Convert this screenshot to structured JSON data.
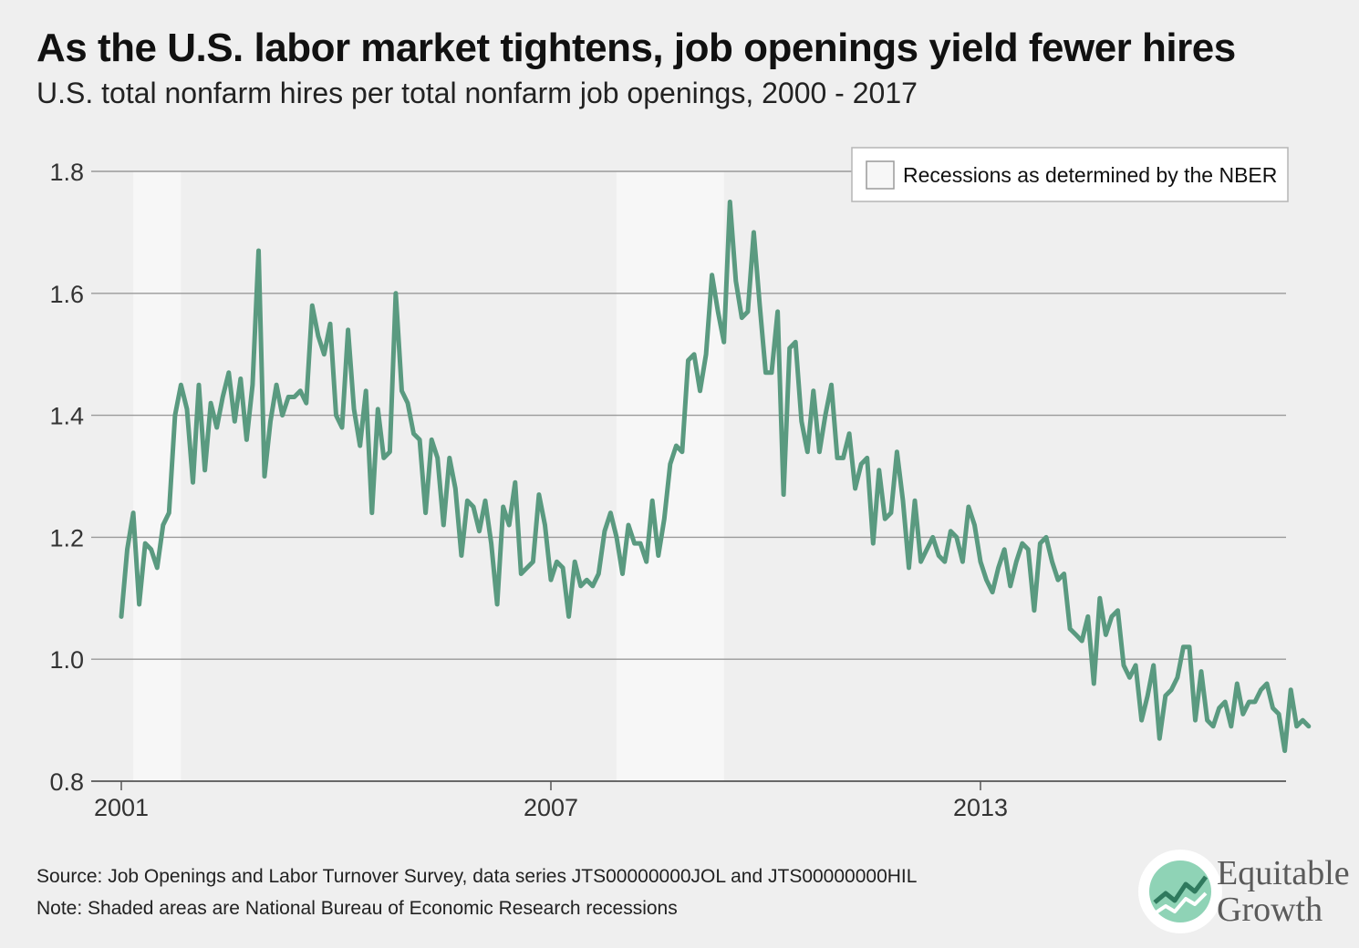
{
  "header": {
    "title": "As the U.S. labor market tightens, job openings yield fewer hires",
    "subtitle": "U.S. total nonfarm hires per total nonfarm job openings, 2000 - 2017"
  },
  "legend": {
    "label": "Recessions as determined by the NBER"
  },
  "footer": {
    "source": "Source: Job Openings and Labor Turnover Survey, data series JTS00000000JOL and JTS00000000HIL",
    "note": "Note: Shaded areas are National Bureau of Economic Research recessions"
  },
  "brand": {
    "line1": "Equitable",
    "line2": "Growth"
  },
  "colors": {
    "line": "#5a9a80",
    "recession": "#f7f7f7",
    "grid": "#9a9a9a",
    "background": "#efefef"
  },
  "chart_data": {
    "type": "line",
    "title": "As the U.S. labor market tightens, job openings yield fewer hires",
    "subtitle": "U.S. total nonfarm hires per total nonfarm job openings, 2000 - 2017",
    "xlabel": "",
    "ylabel": "",
    "ylim": [
      0.8,
      1.8
    ],
    "yticks": [
      "0.8",
      "1.0",
      "1.2",
      "1.4",
      "1.6",
      "1.8"
    ],
    "xticks": [
      "2001",
      "2007",
      "2013"
    ],
    "x_start": "2001-01",
    "x_frequency": "monthly",
    "grid": true,
    "legend_position": "top-right",
    "recessions": [
      {
        "start": "2001-03",
        "end": "2001-11"
      },
      {
        "start": "2007-12",
        "end": "2009-06"
      }
    ],
    "series": [
      {
        "name": "",
        "values": [
          1.07,
          1.18,
          1.24,
          1.09,
          1.19,
          1.18,
          1.15,
          1.22,
          1.24,
          1.4,
          1.45,
          1.41,
          1.29,
          1.45,
          1.31,
          1.42,
          1.38,
          1.43,
          1.47,
          1.39,
          1.46,
          1.36,
          1.45,
          1.67,
          1.3,
          1.39,
          1.45,
          1.4,
          1.43,
          1.43,
          1.44,
          1.42,
          1.58,
          1.53,
          1.5,
          1.55,
          1.4,
          1.38,
          1.54,
          1.41,
          1.35,
          1.44,
          1.24,
          1.41,
          1.33,
          1.34,
          1.6,
          1.44,
          1.42,
          1.37,
          1.36,
          1.24,
          1.36,
          1.33,
          1.22,
          1.33,
          1.28,
          1.17,
          1.26,
          1.25,
          1.21,
          1.26,
          1.19,
          1.09,
          1.25,
          1.22,
          1.29,
          1.14,
          1.15,
          1.16,
          1.27,
          1.22,
          1.13,
          1.16,
          1.15,
          1.07,
          1.16,
          1.12,
          1.13,
          1.12,
          1.14,
          1.21,
          1.24,
          1.2,
          1.14,
          1.22,
          1.19,
          1.19,
          1.16,
          1.26,
          1.17,
          1.23,
          1.32,
          1.35,
          1.34,
          1.49,
          1.5,
          1.44,
          1.5,
          1.63,
          1.57,
          1.52,
          1.75,
          1.62,
          1.56,
          1.57,
          1.7,
          1.58,
          1.47,
          1.47,
          1.57,
          1.27,
          1.51,
          1.52,
          1.39,
          1.34,
          1.44,
          1.34,
          1.4,
          1.45,
          1.33,
          1.33,
          1.37,
          1.28,
          1.32,
          1.33,
          1.19,
          1.31,
          1.23,
          1.24,
          1.34,
          1.26,
          1.15,
          1.26,
          1.16,
          1.18,
          1.2,
          1.17,
          1.16,
          1.21,
          1.2,
          1.16,
          1.25,
          1.22,
          1.16,
          1.13,
          1.11,
          1.15,
          1.18,
          1.12,
          1.16,
          1.19,
          1.18,
          1.08,
          1.19,
          1.2,
          1.16,
          1.13,
          1.14,
          1.05,
          1.04,
          1.03,
          1.07,
          0.96,
          1.1,
          1.04,
          1.07,
          1.08,
          0.99,
          0.97,
          0.99,
          0.9,
          0.94,
          0.99,
          0.87,
          0.94,
          0.95,
          0.97,
          1.02,
          1.02,
          0.9,
          0.98,
          0.9,
          0.89,
          0.92,
          0.93,
          0.89,
          0.96,
          0.91,
          0.93,
          0.93,
          0.95,
          0.96,
          0.92,
          0.91,
          0.85,
          0.95,
          0.89,
          0.9,
          0.89
        ]
      }
    ]
  }
}
